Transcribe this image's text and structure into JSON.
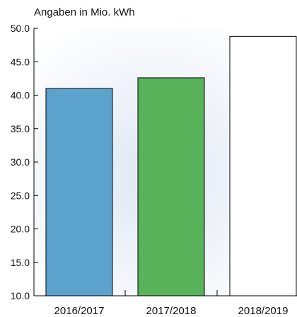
{
  "chart_data": {
    "type": "bar",
    "unit_label": "Angaben in Mio. kWh",
    "categories": [
      "2016/2017",
      "2017/2018",
      "2018/2019"
    ],
    "values": [
      41.0,
      42.6,
      48.8
    ],
    "bar_colors": [
      "#5ba3cd",
      "#58b35a",
      "#ffffff"
    ],
    "ylim": [
      10.0,
      50.0
    ],
    "yticks": [
      "10.0",
      "15.0",
      "20.0",
      "25.0",
      "30.0",
      "35.0",
      "40.0",
      "45.0",
      "50.0"
    ],
    "grid": false,
    "background_gradient": [
      "#dfe7f3",
      "#ffffff"
    ]
  }
}
